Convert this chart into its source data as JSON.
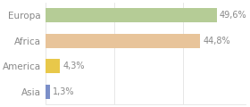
{
  "categories": [
    "Europa",
    "Africa",
    "America",
    "Asia"
  ],
  "values": [
    49.6,
    44.8,
    4.3,
    1.3
  ],
  "labels": [
    "49,6%",
    "44,8%",
    "4,3%",
    "1,3%"
  ],
  "bar_colors": [
    "#b5cc96",
    "#e8c49a",
    "#e8c84a",
    "#7b8fc8"
  ],
  "background_color": "#ffffff",
  "text_color": "#888888",
  "xlim": [
    0,
    58
  ],
  "figsize": [
    2.8,
    1.2
  ],
  "dpi": 100,
  "bar_height": 0.55,
  "fontsize_labels": 7,
  "fontsize_ticks": 7.5
}
